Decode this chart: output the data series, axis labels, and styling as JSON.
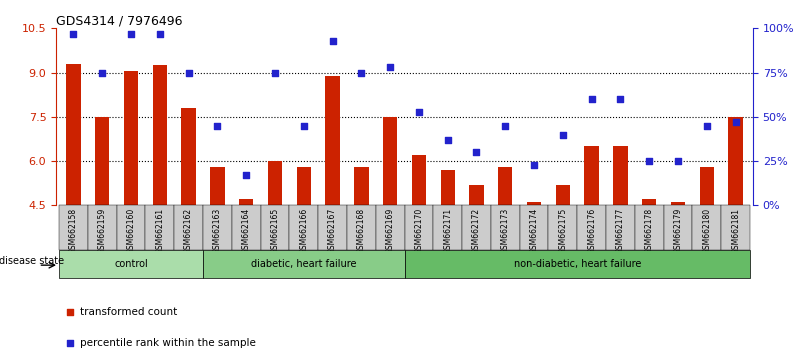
{
  "title": "GDS4314 / 7976496",
  "samples": [
    "GSM662158",
    "GSM662159",
    "GSM662160",
    "GSM662161",
    "GSM662162",
    "GSM662163",
    "GSM662164",
    "GSM662165",
    "GSM662166",
    "GSM662167",
    "GSM662168",
    "GSM662169",
    "GSM662170",
    "GSM662171",
    "GSM662172",
    "GSM662173",
    "GSM662174",
    "GSM662175",
    "GSM662176",
    "GSM662177",
    "GSM662178",
    "GSM662179",
    "GSM662180",
    "GSM662181"
  ],
  "bar_values": [
    9.3,
    7.5,
    9.05,
    9.25,
    7.8,
    5.8,
    4.7,
    6.0,
    5.8,
    8.9,
    5.8,
    7.5,
    6.2,
    5.7,
    5.2,
    5.8,
    4.6,
    5.2,
    6.5,
    6.5,
    4.7,
    4.6,
    5.8,
    7.5
  ],
  "dot_values_pct": [
    97,
    75,
    97,
    97,
    75,
    45,
    17,
    75,
    45,
    93,
    75,
    78,
    53,
    37,
    30,
    45,
    23,
    40,
    60,
    60,
    25,
    25,
    45,
    47
  ],
  "ylim_left": [
    4.5,
    10.5
  ],
  "ylim_right": [
    0,
    100
  ],
  "yticks_left": [
    4.5,
    6.0,
    7.5,
    9.0,
    10.5
  ],
  "yticks_right": [
    0,
    25,
    50,
    75,
    100
  ],
  "ytick_labels_right": [
    "0%",
    "25%",
    "50%",
    "75%",
    "100%"
  ],
  "bar_color": "#cc2200",
  "dot_color": "#2222cc",
  "bar_bottom": 4.5,
  "groups": [
    {
      "label": "control",
      "start": 0,
      "end": 5,
      "color": "#aaddaa"
    },
    {
      "label": "diabetic, heart failure",
      "start": 5,
      "end": 12,
      "color": "#88cc88"
    },
    {
      "label": "non-diabetic, heart failure",
      "start": 12,
      "end": 24,
      "color": "#66bb66"
    }
  ],
  "disease_state_label": "disease state",
  "legend_bar_label": "transformed count",
  "legend_dot_label": "percentile rank within the sample",
  "grid_color": "#000000",
  "bg_color": "#ffffff",
  "tick_bg_color": "#cccccc"
}
